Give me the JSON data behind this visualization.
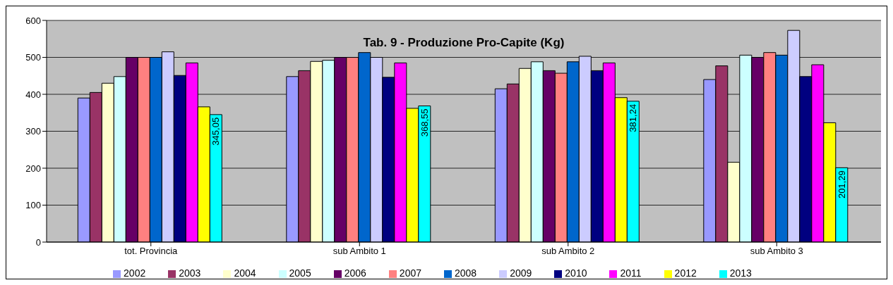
{
  "chart_data": {
    "type": "bar",
    "title": "Tab. 9 - Produzione Pro-Capite (Kg)",
    "categories": [
      "tot. Provincia",
      "sub Ambito 1",
      "sub Ambito 2",
      "sub Ambito 3"
    ],
    "series": [
      {
        "name": "2002",
        "color": "#9999ff",
        "values": [
          390,
          448,
          415,
          440
        ]
      },
      {
        "name": "2003",
        "color": "#993366",
        "values": [
          405,
          464,
          428,
          477
        ]
      },
      {
        "name": "2004",
        "color": "#ffffcc",
        "values": [
          430,
          489,
          470,
          216
        ]
      },
      {
        "name": "2005",
        "color": "#ccffff",
        "values": [
          448,
          492,
          488,
          506
        ]
      },
      {
        "name": "2006",
        "color": "#660066",
        "values": [
          500,
          500,
          464,
          500
        ]
      },
      {
        "name": "2007",
        "color": "#ff8080",
        "values": [
          500,
          500,
          457,
          513
        ]
      },
      {
        "name": "2008",
        "color": "#0066cc",
        "values": [
          500,
          513,
          488,
          506
        ]
      },
      {
        "name": "2009",
        "color": "#ccccff",
        "values": [
          515,
          500,
          503,
          573
        ]
      },
      {
        "name": "2010",
        "color": "#000080",
        "values": [
          451,
          446,
          464,
          448
        ]
      },
      {
        "name": "2011",
        "color": "#ff00ff",
        "values": [
          485,
          485,
          485,
          480
        ]
      },
      {
        "name": "2012",
        "color": "#ffff00",
        "values": [
          366,
          362,
          391,
          323
        ]
      },
      {
        "name": "2013",
        "color": "#00ffff",
        "values": [
          345.05,
          368.55,
          381.24,
          201.29
        ],
        "value_labels": [
          "345,05",
          "368,55",
          "381,24",
          "201,29"
        ]
      }
    ],
    "ylim": [
      0,
      600
    ],
    "yticks": [
      0,
      100,
      200,
      300,
      400,
      500,
      600
    ],
    "grid": "y",
    "legend": "bottom"
  }
}
